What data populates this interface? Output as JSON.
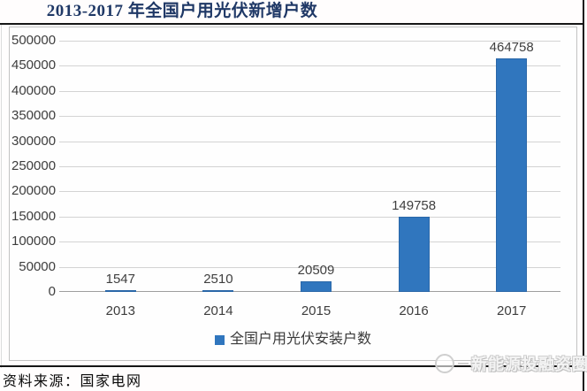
{
  "page": {
    "title": "2013-2017 年全国户用光伏新增户数",
    "source_note": "资料来源：国家电网",
    "watermark": "新能源投融资圈"
  },
  "colors": {
    "bar": "#3076BE",
    "bar_border": "#2A67A8",
    "title_text": "#1F3866",
    "gridline": "#D3D3D3",
    "axis_line": "#9E9E9E",
    "frame_border": "#C2C2C2",
    "tick_text": "#3D3D3D"
  },
  "chart_data": {
    "type": "bar",
    "title": "2013-2017 年全国户用光伏新增户数",
    "categories": [
      "2013",
      "2014",
      "2015",
      "2016",
      "2017"
    ],
    "series": [
      {
        "name": "全国户用光伏安装户数",
        "values": [
          1547,
          2510,
          20509,
          149758,
          464758
        ]
      }
    ],
    "data_labels": [
      "1547",
      "2510",
      "20509",
      "149758",
      "464758"
    ],
    "ylim": [
      0,
      500000
    ],
    "ytick_step": 50000,
    "ytick_labels": [
      "0",
      "50000",
      "100000",
      "150000",
      "200000",
      "250000",
      "300000",
      "350000",
      "400000",
      "450000",
      "500000"
    ],
    "grid": "horizontal",
    "legend": {
      "position": "bottom",
      "entries": [
        "全国户用光伏安装户数"
      ]
    }
  }
}
